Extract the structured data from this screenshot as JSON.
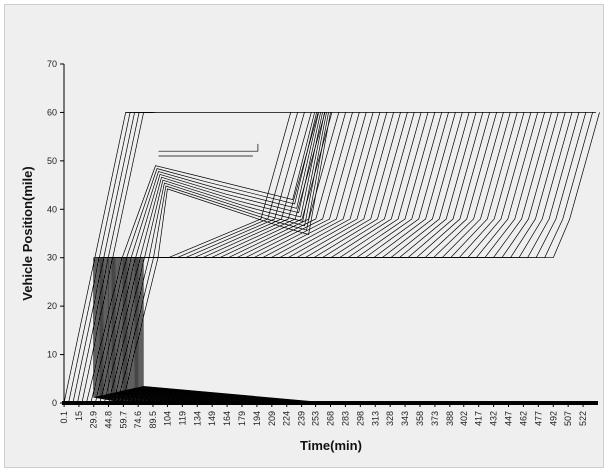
{
  "chart_data": {
    "type": "line",
    "xlabel": "Time(min)",
    "ylabel": "Vehicle Position(mile)",
    "ylim": [
      0,
      70
    ],
    "y_ticks": [
      0,
      10,
      20,
      30,
      40,
      50,
      60,
      70
    ],
    "x_tick_labels": [
      "0.1",
      "15",
      "29.9",
      "44.8",
      "59.7",
      "74.6",
      "89.5",
      "104",
      "119",
      "134",
      "149",
      "164",
      "179",
      "194",
      "209",
      "224",
      "239",
      "253",
      "268",
      "283",
      "298",
      "313",
      "328",
      "343",
      "358",
      "373",
      "388",
      "402",
      "417",
      "432",
      "447",
      "462",
      "477",
      "492",
      "507",
      "522"
    ],
    "xlim": [
      0,
      537
    ],
    "grid": false,
    "legend": "none",
    "line_color": "#000000",
    "series_summary": {
      "vehicle_count": 60,
      "departure_interval_min": 4.5,
      "bottleneck_position_mile": 30,
      "destination_position_mile": 60,
      "diverted_group_exit_mile": 50
    }
  }
}
